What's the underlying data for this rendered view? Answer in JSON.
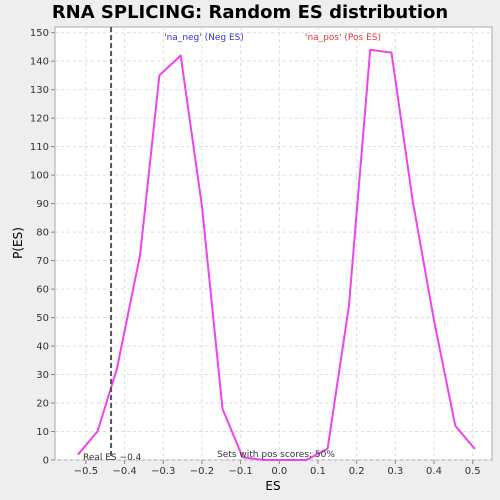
{
  "chart_data": {
    "type": "line",
    "title": "RNA SPLICING: Random ES distribution",
    "xlabel": "ES",
    "ylabel": "P(ES)",
    "xlim": [
      -0.58,
      0.55
    ],
    "ylim": [
      0,
      152
    ],
    "x_ticks": [
      -0.5,
      -0.4,
      -0.3,
      -0.2,
      -0.1,
      0.0,
      0.1,
      0.2,
      0.3,
      0.4,
      0.5
    ],
    "x_tick_labels": [
      "−0.5",
      "−0.4",
      "−0.3",
      "−0.2",
      "−0.1",
      "0.0",
      "0.1",
      "0.2",
      "0.3",
      "0.4",
      "0.5"
    ],
    "y_ticks": [
      0,
      10,
      20,
      30,
      40,
      50,
      60,
      70,
      80,
      90,
      100,
      110,
      120,
      130,
      140,
      150
    ],
    "y_tick_labels": [
      "0",
      "10",
      "20",
      "30",
      "40",
      "50",
      "60",
      "70",
      "80",
      "90",
      "100",
      "110",
      "120",
      "130",
      "140",
      "150"
    ],
    "grid": true,
    "series": [
      {
        "color": "#ee44ee",
        "x": [
          -0.52,
          -0.47,
          -0.42,
          -0.36,
          -0.31,
          -0.255,
          -0.2,
          -0.147,
          -0.095,
          -0.04,
          0.015,
          0.07,
          0.125,
          0.18,
          0.235,
          0.29,
          0.345,
          0.4,
          0.455,
          0.505
        ],
        "y": [
          2,
          10,
          32,
          72,
          135,
          142,
          89,
          18,
          1,
          0,
          0,
          0,
          4,
          54,
          144,
          143,
          91,
          49,
          12,
          4
        ]
      }
    ],
    "reference_line": {
      "x": -0.435,
      "color": "#555555",
      "label": "Real ES −0.4"
    },
    "annotations": {
      "neg_label": "'na_neg' (Neg ES)",
      "neg_color": "#3333dd",
      "pos_label": "'na_pos' (Pos ES)",
      "pos_color": "#ee3333",
      "footer": "Sets with pos scores: 50%"
    }
  }
}
